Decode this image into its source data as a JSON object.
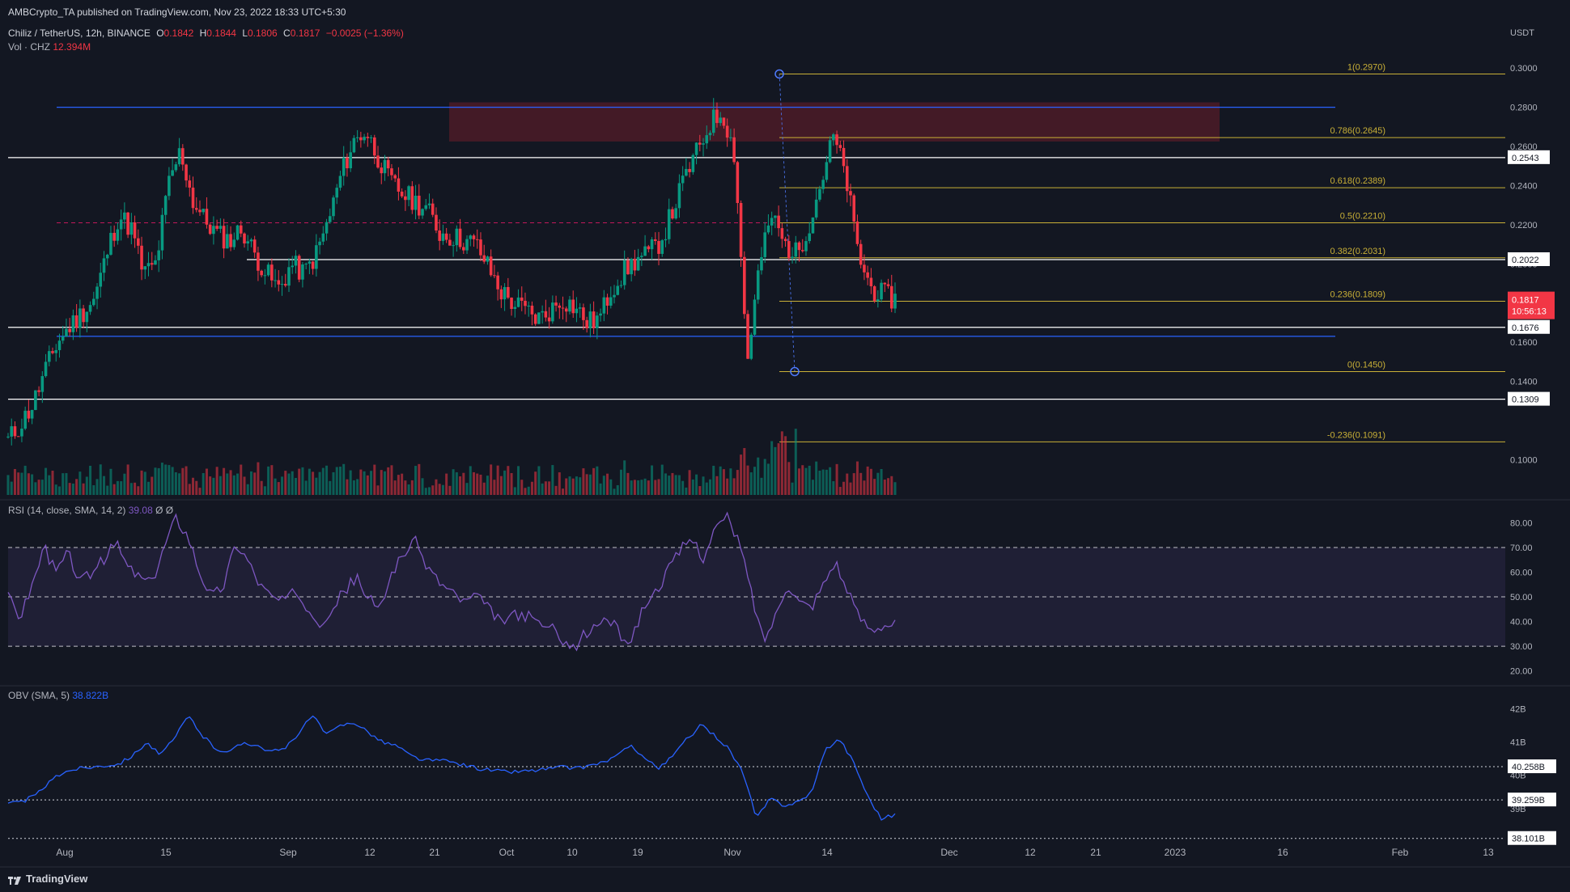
{
  "header": {
    "published": "AMBCrypto_TA published on TradingView.com, Nov 23, 2022 18:33 UTC+5:30",
    "symbol": "Chiliz / TetherUS, 12h, BINANCE",
    "o_label": "O",
    "o_value": "0.1842",
    "h_label": "H",
    "h_value": "0.1844",
    "l_label": "L",
    "l_value": "0.1806",
    "c_label": "C",
    "c_value": "0.1817",
    "change": "−0.0025 (−1.36%)",
    "vol_label": "Vol · CHZ",
    "vol_value": "12.394M",
    "rsi_label": "RSI (14, close, SMA, 14, 2)",
    "rsi_value": "39.08",
    "rsi_extra": "Ø Ø",
    "obv_label": "OBV (SMA, 5)",
    "obv_value": "38.822B"
  },
  "footer": {
    "brand": "TradingView"
  },
  "colors": {
    "background": "#131722",
    "up": "#089981",
    "down": "#f23645",
    "fib": "#c9b037",
    "rsi": "#7e57c2",
    "obv": "#2962ff",
    "zone": "#6b1e2a"
  },
  "chart_data": [
    {
      "type": "candlestick",
      "title": "Chiliz / TetherUS, 12h, BINANCE",
      "ylabel": "USDT",
      "ylim": [
        0.082,
        0.31
      ],
      "x_ticks": [
        "Aug",
        "15",
        "Sep",
        "12",
        "21",
        "Oct",
        "10",
        "19",
        "Nov",
        "14",
        "Dec",
        "12",
        "21",
        "2023",
        "16",
        "Feb",
        "13"
      ],
      "y_ticks": [
        "0.3000",
        "0.2800",
        "0.2600",
        "0.2400",
        "0.2200",
        "0.2000",
        "0.1800",
        "0.1600",
        "0.1400",
        "0.1000"
      ],
      "close_path": [
        0.11,
        0.118,
        0.128,
        0.145,
        0.16,
        0.168,
        0.175,
        0.182,
        0.205,
        0.225,
        0.218,
        0.195,
        0.2,
        0.24,
        0.258,
        0.232,
        0.222,
        0.215,
        0.212,
        0.218,
        0.205,
        0.195,
        0.187,
        0.2,
        0.195,
        0.205,
        0.222,
        0.245,
        0.262,
        0.268,
        0.255,
        0.242,
        0.236,
        0.232,
        0.228,
        0.216,
        0.214,
        0.212,
        0.21,
        0.198,
        0.186,
        0.18,
        0.176,
        0.172,
        0.176,
        0.182,
        0.178,
        0.17,
        0.172,
        0.188,
        0.196,
        0.202,
        0.205,
        0.212,
        0.228,
        0.245,
        0.258,
        0.272,
        0.278,
        0.255,
        0.15,
        0.2,
        0.225,
        0.21,
        0.205,
        0.22,
        0.242,
        0.265,
        0.245,
        0.205,
        0.188,
        0.184,
        0.182
      ],
      "price_labels": [
        "0.2543",
        "0.2022",
        "0.1817",
        "0.1676",
        "0.1309"
      ],
      "current_price": "0.1817",
      "countdown": "10:56:13",
      "fib_levels": [
        {
          "label": "1(0.2970)",
          "value": 0.297
        },
        {
          "label": "0.786(0.2645)",
          "value": 0.2645
        },
        {
          "label": "0.618(0.2389)",
          "value": 0.2389
        },
        {
          "label": "0.5(0.2210)",
          "value": 0.221
        },
        {
          "label": "0.382(0.2031)",
          "value": 0.2031
        },
        {
          "label": "0.236(0.1809)",
          "value": 0.1809
        },
        {
          "label": "0(0.1450)",
          "value": 0.145
        },
        {
          "label": "-0.236(0.1091)",
          "value": 0.1091
        }
      ],
      "horizontal_levels": [
        0.2543,
        0.2022,
        0.1676,
        0.1309
      ],
      "blue_levels": [
        0.28,
        0.163
      ],
      "dashed_level": 0.221,
      "resistance_zone": [
        0.2625,
        0.2825
      ]
    },
    {
      "type": "line",
      "title": "RSI (14, close, SMA, 14, 2)",
      "ylim": [
        15,
        87
      ],
      "y_ticks": [
        "80.00",
        "70.00",
        "60.00",
        "50.00",
        "40.00",
        "30.00",
        "20.00"
      ],
      "bands": [
        70,
        50,
        30
      ],
      "path": [
        50,
        42,
        55,
        70,
        60,
        68,
        56,
        60,
        65,
        72,
        62,
        58,
        55,
        70,
        82,
        75,
        60,
        50,
        55,
        72,
        65,
        55,
        50,
        48,
        52,
        46,
        40,
        45,
        52,
        58,
        50,
        44,
        60,
        68,
        72,
        62,
        56,
        52,
        48,
        50,
        46,
        40,
        42,
        43,
        40,
        38,
        35,
        28,
        34,
        38,
        42,
        35,
        32,
        46,
        52,
        60,
        68,
        74,
        66,
        78,
        82,
        72,
        52,
        32,
        42,
        56,
        48,
        46,
        55,
        65,
        52,
        42,
        37,
        39,
        39.08
      ]
    },
    {
      "type": "line",
      "title": "OBV (SMA, 5)",
      "ylim": [
        37.9,
        42.4
      ],
      "y_ticks": [
        "42B",
        "41B",
        "40B",
        "39B"
      ],
      "price_labels": [
        "40.258B",
        "39.259B",
        "38.101B"
      ],
      "path": [
        39.15,
        39.2,
        39.4,
        39.8,
        40.1,
        40.2,
        40.25,
        40.3,
        40.35,
        40.6,
        41.0,
        40.6,
        41.1,
        41.8,
        41.2,
        40.8,
        40.7,
        41.0,
        40.9,
        40.7,
        40.8,
        41.3,
        41.8,
        41.2,
        41.5,
        41.6,
        41.3,
        41.0,
        40.9,
        40.6,
        40.45,
        40.45,
        40.4,
        40.3,
        40.2,
        40.15,
        40.1,
        40.12,
        40.15,
        40.2,
        40.25,
        40.2,
        40.3,
        40.4,
        40.6,
        40.9,
        40.5,
        40.2,
        40.6,
        41.1,
        41.5,
        41.2,
        40.8,
        40.1,
        38.7,
        39.3,
        39.1,
        39.2,
        39.5,
        40.8,
        41.1,
        40.4,
        39.4,
        38.7,
        38.82
      ]
    }
  ]
}
